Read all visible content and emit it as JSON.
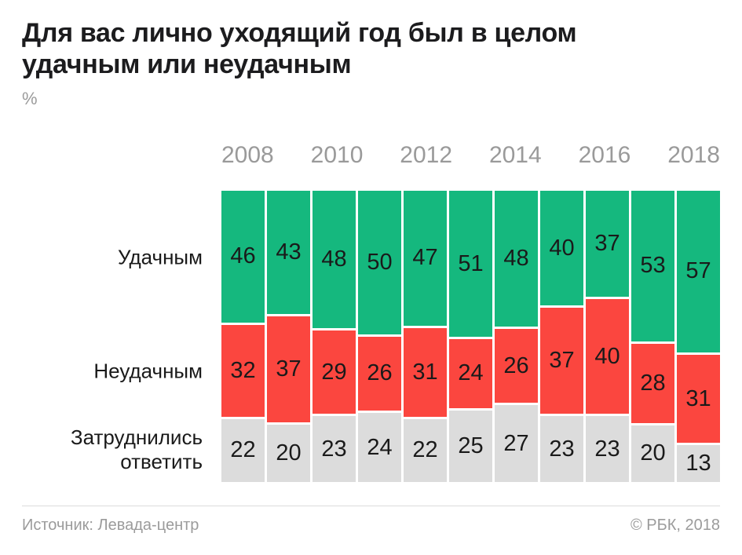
{
  "title": "Для вас лично уходящий год был в целом удачным или неудачным",
  "units": "%",
  "footer": {
    "source": "Источник: Левада-центр",
    "copyright": "© РБК, 2018"
  },
  "colors": {
    "success_green": "#15b87e",
    "fail_red": "#fb463f",
    "undecided_gray": "#dcdcdc",
    "text_dark": "#1a1a1a",
    "text_gray": "#9b9b9b",
    "divider": "#dcdcdc"
  },
  "chart_data": {
    "type": "bar",
    "subtype": "stacked-100-percent-columns",
    "title": "Для вас лично уходящий год был в целом удачным или неудачным",
    "ylabel": "%",
    "grid": false,
    "legend_position": "left-category-labels",
    "categories": [
      "2008",
      "2009",
      "2010",
      "2011",
      "2012",
      "2013",
      "2014",
      "2015",
      "2016",
      "2017",
      "2018"
    ],
    "tick_labels": [
      "2008",
      "2010",
      "2012",
      "2014",
      "2016",
      "2018"
    ],
    "series": [
      {
        "name": "Удачным",
        "color": "#15b87e",
        "values": [
          46,
          43,
          48,
          50,
          47,
          51,
          48,
          40,
          37,
          53,
          57
        ]
      },
      {
        "name": "Неудачным",
        "color": "#fb463f",
        "values": [
          32,
          37,
          29,
          26,
          31,
          24,
          26,
          37,
          40,
          28,
          31
        ]
      },
      {
        "name": "Затруднились ответить",
        "color": "#dcdcdc",
        "values": [
          22,
          20,
          23,
          24,
          22,
          25,
          27,
          23,
          23,
          20,
          13
        ]
      }
    ]
  }
}
